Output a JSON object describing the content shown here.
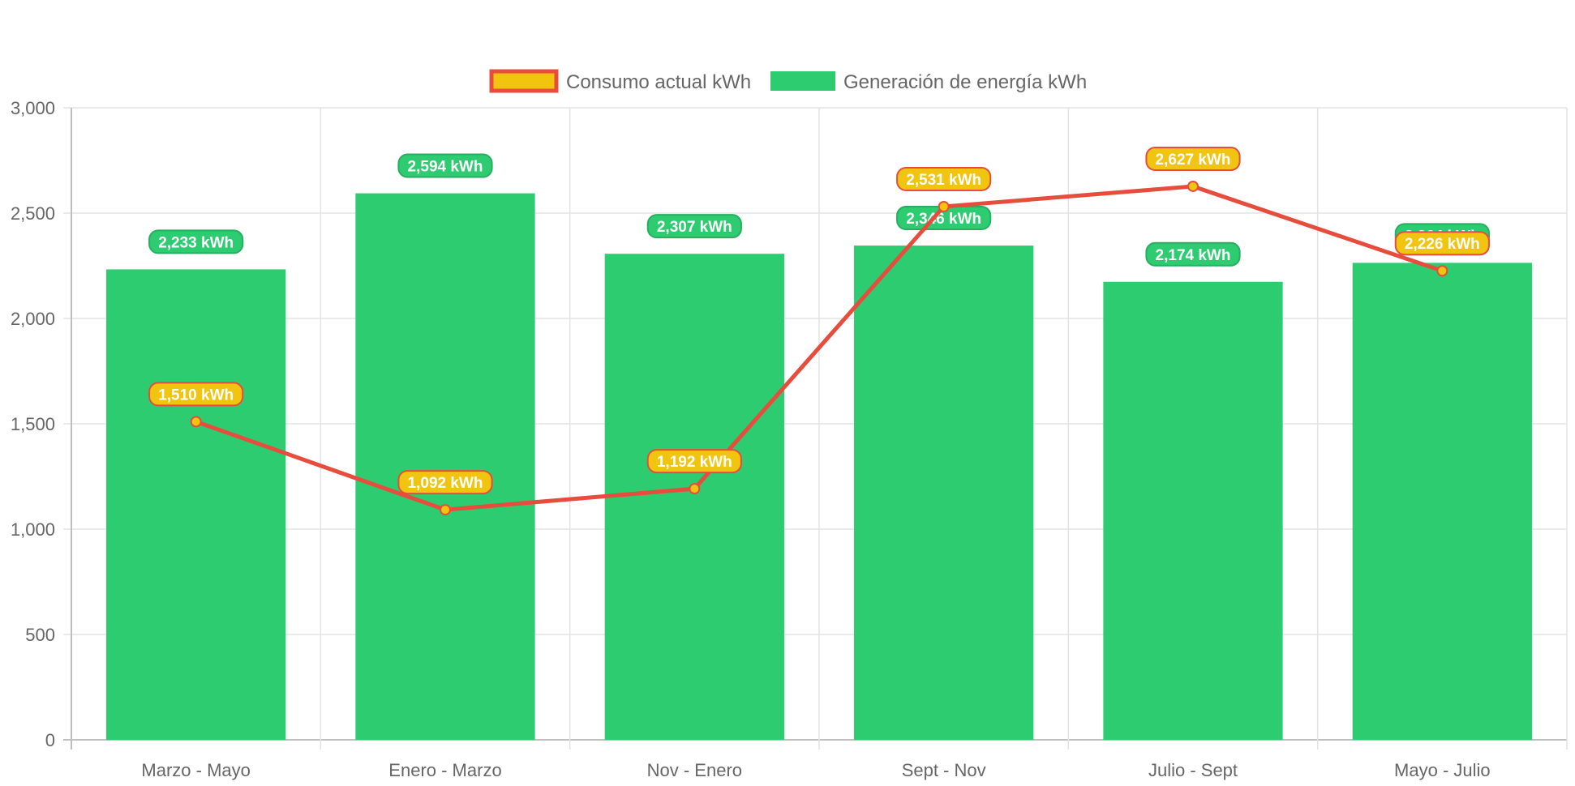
{
  "chart_data": {
    "type": "bar",
    "categories": [
      "Marzo - Mayo",
      "Enero - Marzo",
      "Nov - Enero",
      "Sept - Nov",
      "Julio - Sept",
      "Mayo - Julio"
    ],
    "ylim": [
      0,
      3000
    ],
    "yticks": [
      "0",
      "500",
      "1,000",
      "1,500",
      "2,000",
      "2,500",
      "3,000"
    ],
    "ytick_values": [
      0,
      500,
      1000,
      1500,
      2000,
      2500,
      3000
    ],
    "grid": true,
    "legend_position": "top-center",
    "series": [
      {
        "name": "Consumo actual kWh",
        "type": "line",
        "values": [
          1510,
          1092,
          1192,
          2531,
          2627,
          2226
        ],
        "labels": [
          "1,510 kWh",
          "1,092 kWh",
          "1,192 kWh",
          "2,531 kWh",
          "2,627 kWh",
          "2,226 kWh"
        ],
        "line_color": "#e74c3c",
        "fill_color": "#f1c40f"
      },
      {
        "name": "Generación de energía kWh",
        "type": "bar",
        "values": [
          2233,
          2594,
          2307,
          2346,
          2174,
          2264
        ],
        "labels": [
          "2,233 kWh",
          "2,594 kWh",
          "2,307 kWh",
          "2,346 kWh",
          "2,174 kWh",
          "2,264 kWh"
        ],
        "color": "#2ecc71",
        "border_color": "#27ae60"
      }
    ]
  }
}
